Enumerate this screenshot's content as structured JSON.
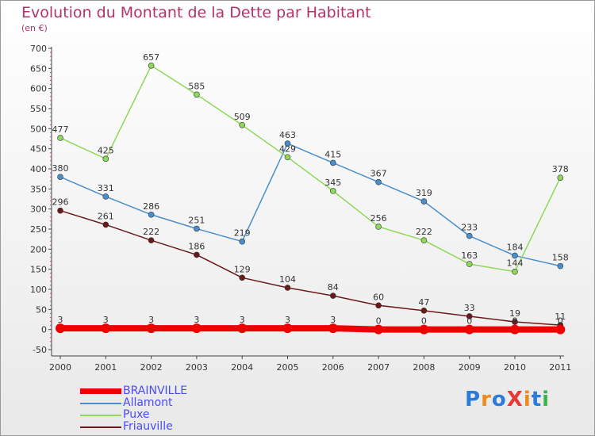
{
  "header": {
    "title": "Evolution du Montant de la Dette par Habitant",
    "unit": "(en €)"
  },
  "logo": {
    "text": "ProXiti",
    "colors": [
      "#2b7bd9",
      "#f08a1c",
      "#2b7bd9",
      "#e53935",
      "#f08a1c",
      "#2b7bd9",
      "#3bb34a"
    ]
  },
  "chart_data": {
    "type": "line",
    "title": "Evolution du Montant de la Dette par Habitant",
    "ylabel": "(en €)",
    "xlabel": "",
    "categories": [
      "2000",
      "2001",
      "2002",
      "2003",
      "2004",
      "2005",
      "2006",
      "2007",
      "2008",
      "2009",
      "2010",
      "2011"
    ],
    "ylim": [
      -50,
      700
    ],
    "yticks": [
      -50,
      0,
      50,
      100,
      150,
      200,
      250,
      300,
      350,
      400,
      450,
      500,
      550,
      600,
      650,
      700
    ],
    "grid": false,
    "legend_position": "bottom-left",
    "series": [
      {
        "name": "BRAINVILLE",
        "color": "#ee0000",
        "values": [
          3,
          3,
          3,
          3,
          3,
          3,
          3,
          0,
          0,
          0,
          0,
          0
        ],
        "labels": [
          "3",
          "3",
          "3",
          "3",
          "3",
          "3",
          "3",
          "0",
          "0",
          "0",
          "0",
          "0"
        ],
        "thick": true
      },
      {
        "name": "Allamont",
        "color": "#4a8fcb",
        "values": [
          380,
          331,
          286,
          251,
          219,
          463,
          415,
          367,
          319,
          233,
          184,
          158
        ],
        "labels": [
          "380",
          "331",
          "286",
          "251",
          "219",
          "463",
          "415",
          "367",
          "319",
          "233",
          "184",
          "158"
        ]
      },
      {
        "name": "Puxe",
        "color": "#8ed85a",
        "values": [
          477,
          425,
          657,
          585,
          509,
          429,
          345,
          256,
          222,
          163,
          144,
          378
        ],
        "labels": [
          "477",
          "425",
          "657",
          "585",
          "509",
          "429",
          "345",
          "256",
          "222",
          "163",
          "144",
          "378"
        ]
      },
      {
        "name": "Friauville",
        "color": "#6b1a1a",
        "values": [
          296,
          261,
          222,
          186,
          129,
          104,
          84,
          60,
          47,
          33,
          19,
          11
        ],
        "labels": [
          "296",
          "261",
          "222",
          "186",
          "129",
          "104",
          "84",
          "60",
          "47",
          "33",
          "19",
          "11"
        ]
      }
    ]
  }
}
